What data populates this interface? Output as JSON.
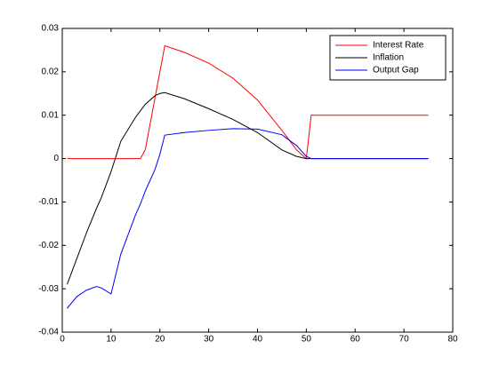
{
  "chart_data": {
    "type": "line",
    "x": [
      1,
      3,
      5,
      7,
      8,
      10,
      12,
      15,
      16,
      17,
      18,
      19,
      20,
      21,
      25,
      30,
      35,
      40,
      45,
      48,
      50,
      51,
      55,
      60,
      65,
      70,
      75
    ],
    "series": [
      {
        "name": "Interest Rate",
        "color": "#ff0000",
        "values": [
          0,
          0,
          0,
          0,
          0,
          0,
          0,
          0,
          0,
          0.002,
          0.008,
          0.014,
          0.02,
          0.026,
          0.0245,
          0.022,
          0.0185,
          0.0135,
          0.0065,
          0.002,
          0,
          0.01,
          0.01,
          0.01,
          0.01,
          0.01,
          0.01
        ]
      },
      {
        "name": "Inflation",
        "color": "#000000",
        "values": [
          -0.029,
          -0.023,
          -0.017,
          -0.0115,
          -0.009,
          -0.003,
          0.004,
          0.0095,
          0.011,
          0.0125,
          0.0135,
          0.0145,
          0.015,
          0.0152,
          0.0138,
          0.0115,
          0.009,
          0.006,
          0.002,
          0.0005,
          0,
          0,
          0,
          0,
          0,
          0,
          0
        ]
      },
      {
        "name": "Output Gap",
        "color": "#0000ff",
        "values": [
          -0.0345,
          -0.0318,
          -0.0303,
          -0.0295,
          -0.0298,
          -0.0312,
          -0.022,
          -0.013,
          -0.0105,
          -0.0075,
          -0.005,
          -0.0025,
          0.001,
          0.0054,
          0.006,
          0.0065,
          0.0069,
          0.0068,
          0.0055,
          0.003,
          0.0005,
          0,
          0,
          0,
          0,
          0,
          0
        ]
      }
    ],
    "xlim": [
      0,
      80
    ],
    "xticks": [
      0,
      10,
      20,
      30,
      40,
      50,
      60,
      70,
      80
    ],
    "ylim": [
      -0.04,
      0.03
    ],
    "yticks": [
      -0.04,
      -0.03,
      -0.02,
      -0.01,
      0,
      0.01,
      0.02,
      0.03
    ],
    "legend": "northeast"
  }
}
